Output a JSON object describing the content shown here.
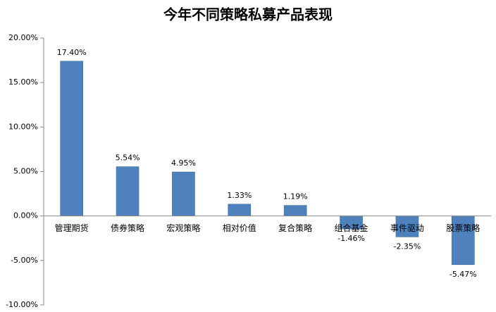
{
  "chart_data": {
    "type": "bar",
    "title": "今年不同策略私募产品表现",
    "categories": [
      "管理期货",
      "债券策略",
      "宏观策略",
      "相对价值",
      "复合策略",
      "组合基金",
      "事件驱动",
      "股票策略"
    ],
    "values": [
      17.4,
      5.54,
      4.95,
      1.33,
      1.19,
      -1.46,
      -2.35,
      -5.47
    ],
    "value_labels": [
      "17.40%",
      "5.54%",
      "4.95%",
      "1.33%",
      "1.19%",
      "-1.46%",
      "-2.35%",
      "-5.47%"
    ],
    "color": "#4f81bd",
    "ylim": [
      -10,
      20
    ],
    "yticks": [
      {
        "value": -10,
        "label": "-10.00%"
      },
      {
        "value": -5,
        "label": "-5.00%"
      },
      {
        "value": 0,
        "label": "0.00%"
      },
      {
        "value": 5,
        "label": "5.00%"
      },
      {
        "value": 10,
        "label": "10.00%"
      },
      {
        "value": 15,
        "label": "15.00%"
      },
      {
        "value": 20,
        "label": "20.00%"
      }
    ],
    "grid": false
  }
}
